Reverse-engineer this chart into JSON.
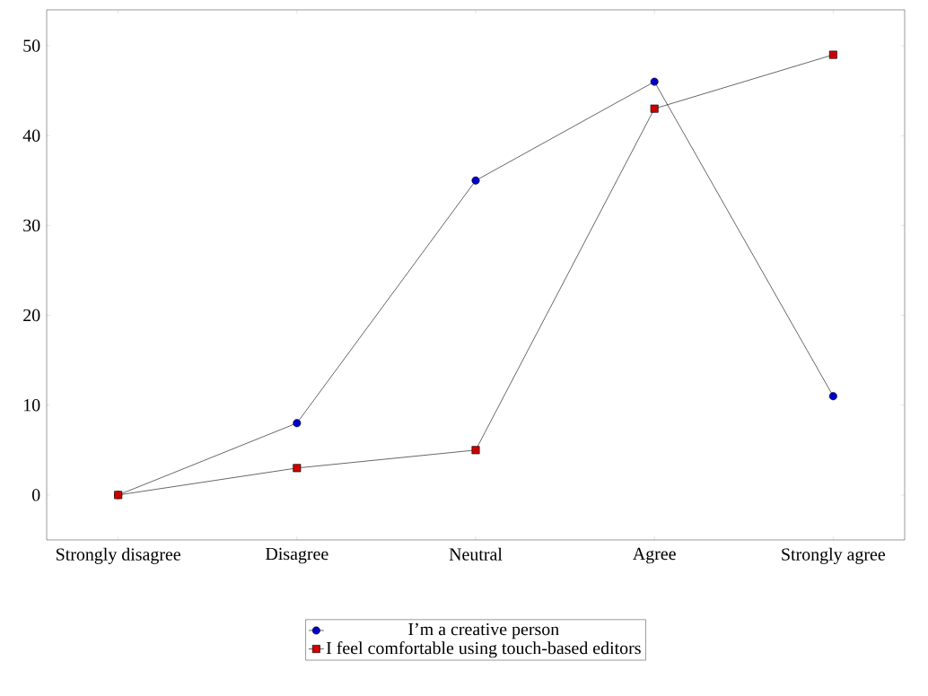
{
  "chart_data": {
    "type": "line",
    "categories": [
      "Strongly disagree",
      "Disagree",
      "Neutral",
      "Agree",
      "Strongly agree"
    ],
    "series": [
      {
        "name": "I’m a creative person",
        "color": "#000000",
        "colors": [
          "#0000cc",
          "#0000cc",
          "#0000cc",
          "#0000cc",
          "#0000cc"
        ],
        "marker": "circle",
        "values": [
          0,
          8,
          35,
          46,
          11
        ]
      },
      {
        "name": "I feel comfortable using touch-based editors",
        "color": "#000000",
        "colors": [
          "#cc0000",
          "#cc0000",
          "#cc0000",
          "#cc0000",
          "#cc0000"
        ],
        "marker": "square",
        "values": [
          0,
          3,
          5,
          43,
          49
        ]
      }
    ],
    "ylim": [
      -5,
      54
    ],
    "yticks": [
      0,
      10,
      20,
      30,
      40,
      50
    ],
    "legend": "bottom",
    "line_style": "solid"
  }
}
